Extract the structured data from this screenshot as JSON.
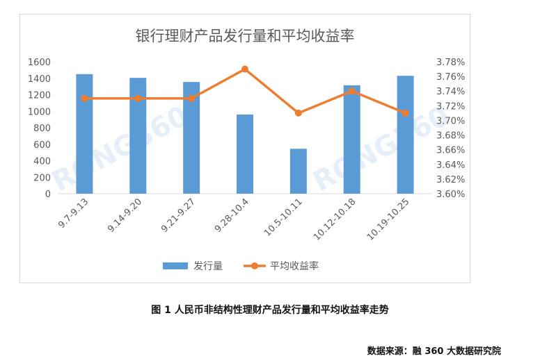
{
  "chart_data": {
    "type": "bar",
    "title": "银行理财产品发行量和平均收益率",
    "categories": [
      "9.7-9.13",
      "9.14-9.20",
      "9.21-9.27",
      "9.28-10.4",
      "10.5-10.11",
      "10.12-10.18",
      "10.19-10.25"
    ],
    "series": [
      {
        "name": "发行量",
        "type": "bar",
        "axis": "left",
        "color": "#5b9bd5",
        "values": [
          1450,
          1405,
          1355,
          960,
          545,
          1315,
          1430
        ]
      },
      {
        "name": "平均收益率",
        "type": "line",
        "axis": "right",
        "color": "#ed7d31",
        "values": [
          3.73,
          3.73,
          3.73,
          3.77,
          3.71,
          3.74,
          3.71
        ]
      }
    ],
    "y_left": {
      "min": 0,
      "max": 1600,
      "ticks": [
        "0",
        "200",
        "400",
        "600",
        "800",
        "1000",
        "1200",
        "1400",
        "1600"
      ]
    },
    "y_right": {
      "min": 3.6,
      "max": 3.78,
      "ticks": [
        "3.60%",
        "3.62%",
        "3.64%",
        "3.66%",
        "3.68%",
        "3.70%",
        "3.72%",
        "3.74%",
        "3.76%",
        "3.78%"
      ]
    },
    "grid": false,
    "legend_position": "bottom",
    "watermark": "RONG360"
  },
  "caption": "图 1  人民币非结构性理财产品发行量和平均收益率走势",
  "source": "数据来源：融 360 大数据研究院"
}
